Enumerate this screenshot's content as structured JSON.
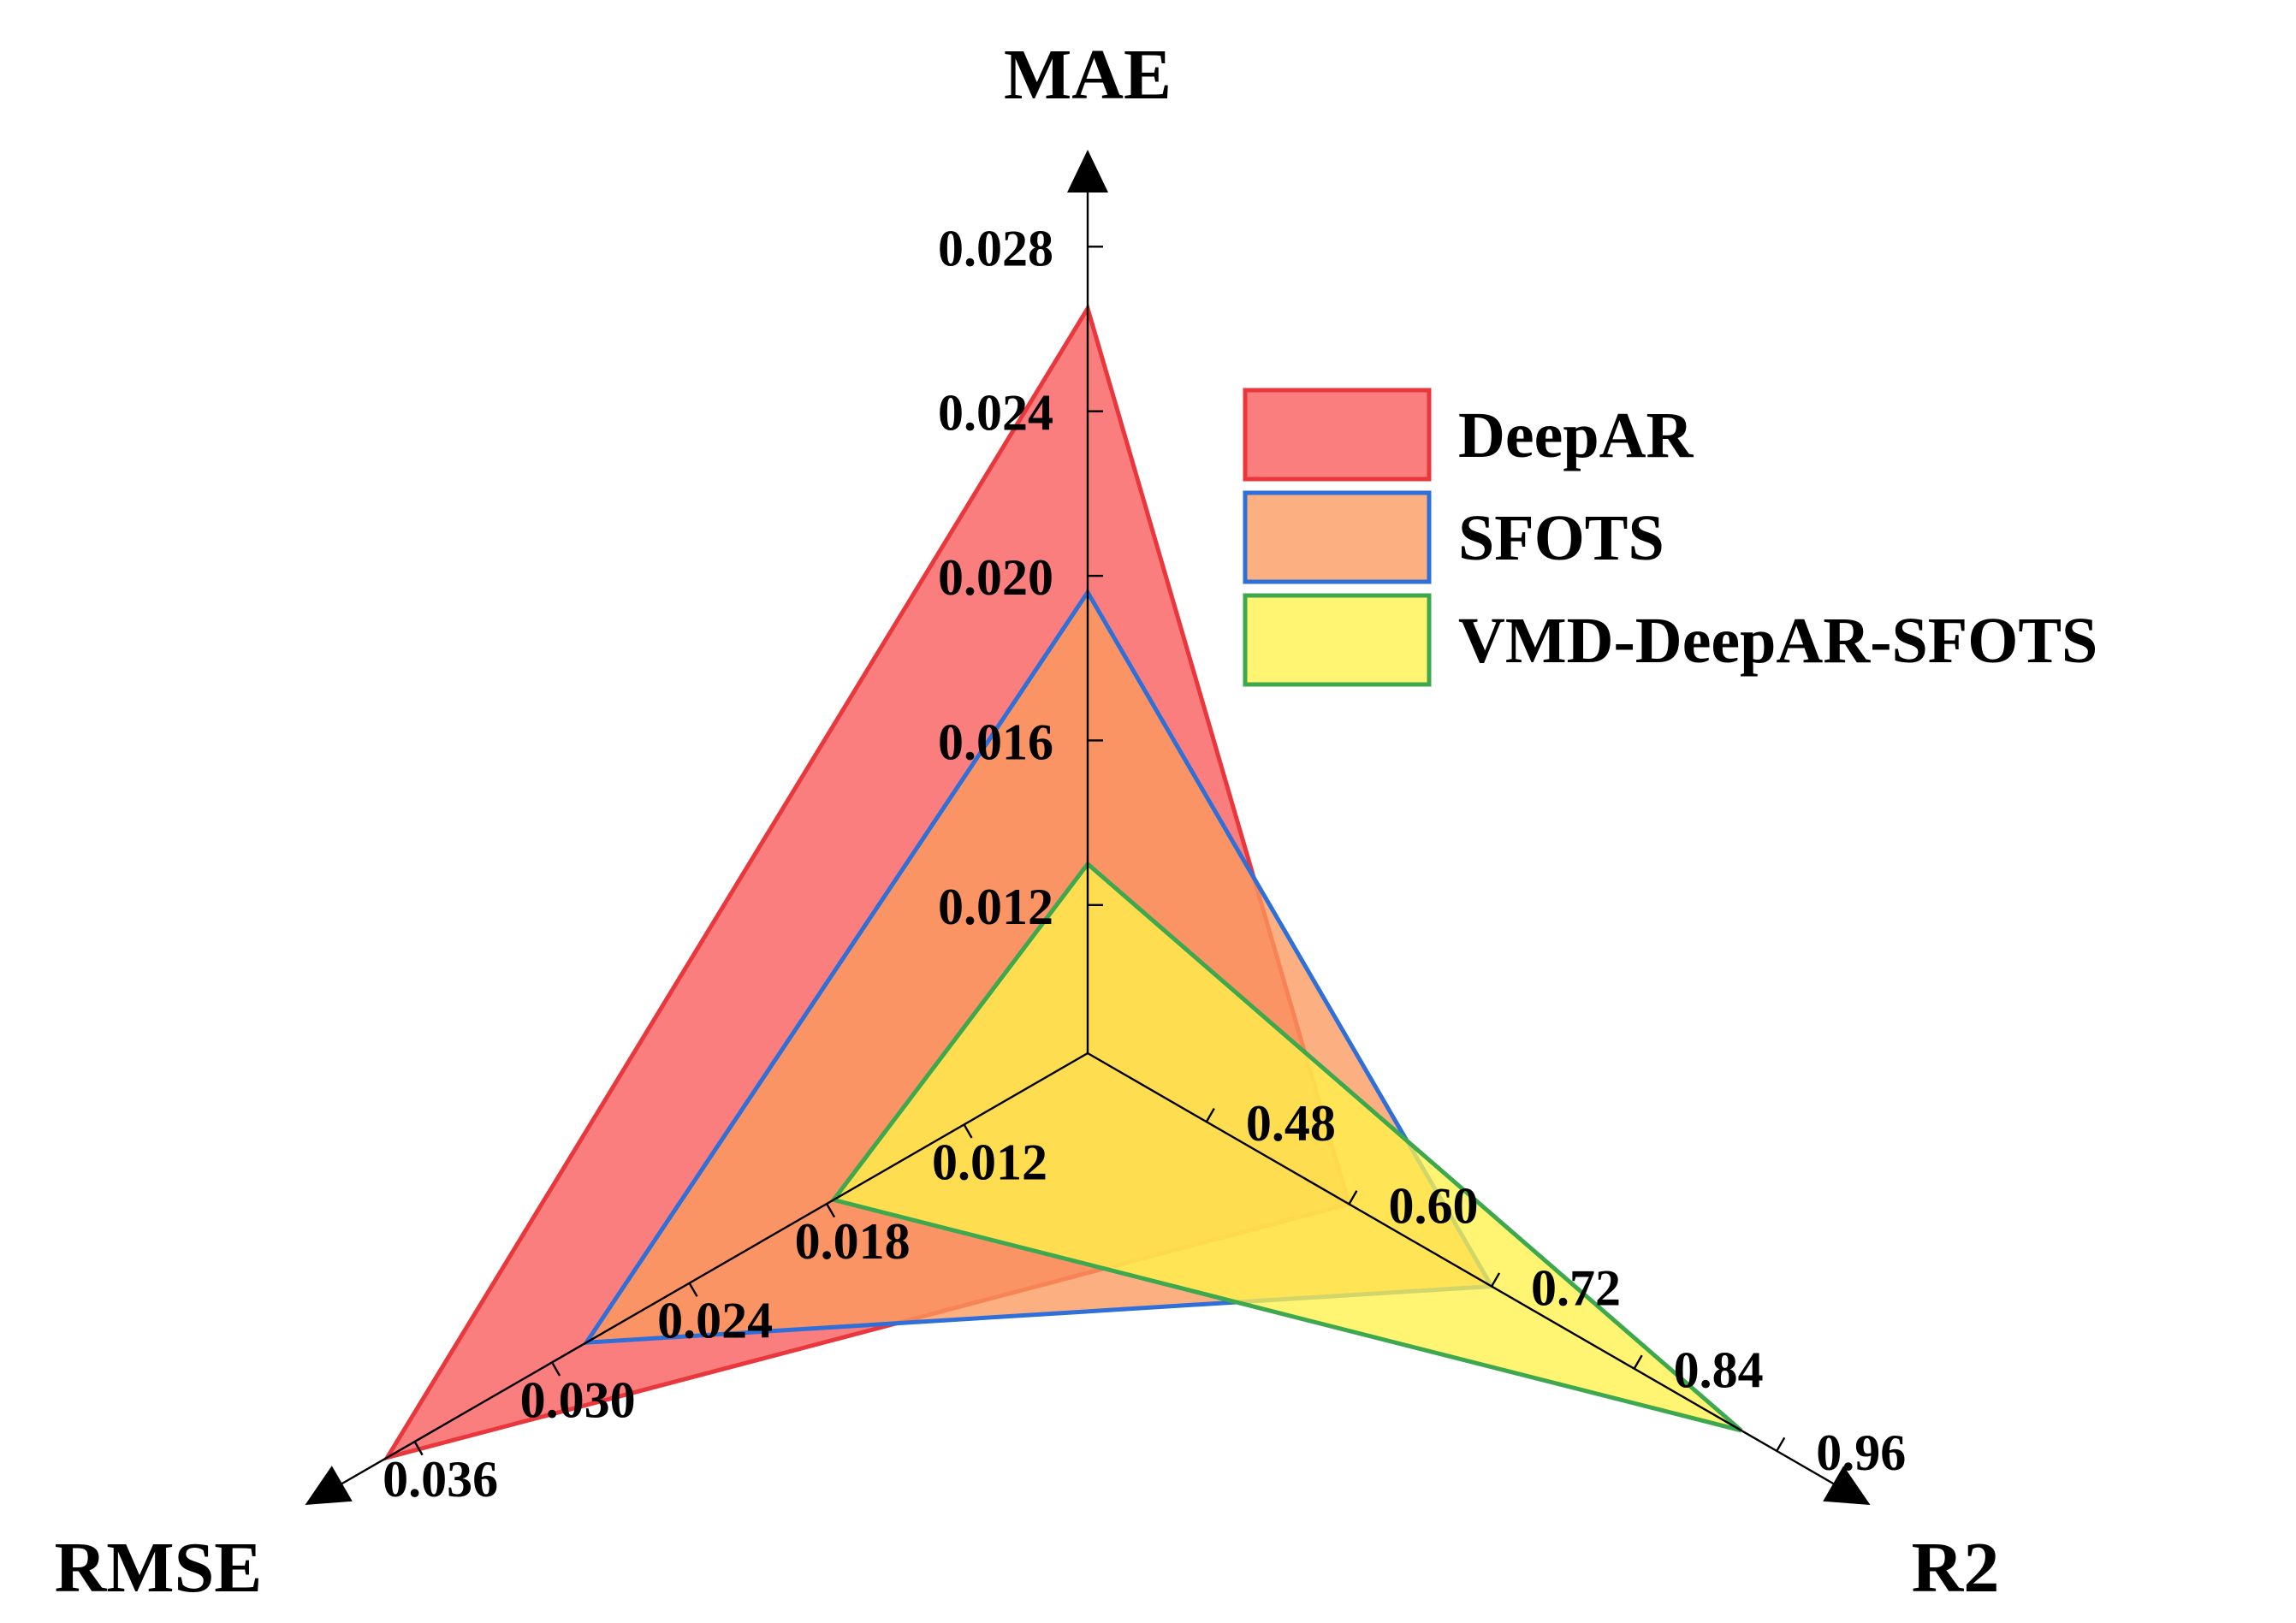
{
  "chart_data": {
    "type": "radar",
    "axes": [
      {
        "label": "MAE",
        "ticks": [
          "0.012",
          "0.016",
          "0.020",
          "0.024",
          "0.028"
        ],
        "tick_values": [
          0.012,
          0.016,
          0.02,
          0.024,
          0.028
        ],
        "range": [
          0.0084,
          0.0294
        ]
      },
      {
        "label": "R2",
        "ticks": [
          "0.48",
          "0.60",
          "0.72",
          "0.84",
          "0.96"
        ],
        "tick_values": [
          0.48,
          0.6,
          0.72,
          0.84,
          0.96
        ],
        "range": [
          0.38,
          1.01
        ]
      },
      {
        "label": "RMSE",
        "ticks": [
          "0.012",
          "0.018",
          "0.024",
          "0.030",
          "0.036"
        ],
        "tick_values": [
          0.012,
          0.018,
          0.024,
          0.03,
          0.036
        ],
        "range": [
          0.0066,
          0.0393
        ]
      }
    ],
    "series": [
      {
        "name": "DeepAR",
        "values": [
          0.0265,
          0.6,
          0.0372
        ],
        "fill": "#fa5a5a",
        "stroke": "#e8383d"
      },
      {
        "name": "SFOTS",
        "values": [
          0.0196,
          0.72,
          0.0285
        ],
        "fill": "#fb9a5e",
        "stroke": "#2f6fd8"
      },
      {
        "name": "VMD-DeepAR-SFOTS",
        "values": [
          0.013,
          0.93,
          0.0177
        ],
        "fill": "#fff24a",
        "stroke": "#3ea84e"
      }
    ],
    "legend": {
      "position": "top-right"
    }
  }
}
